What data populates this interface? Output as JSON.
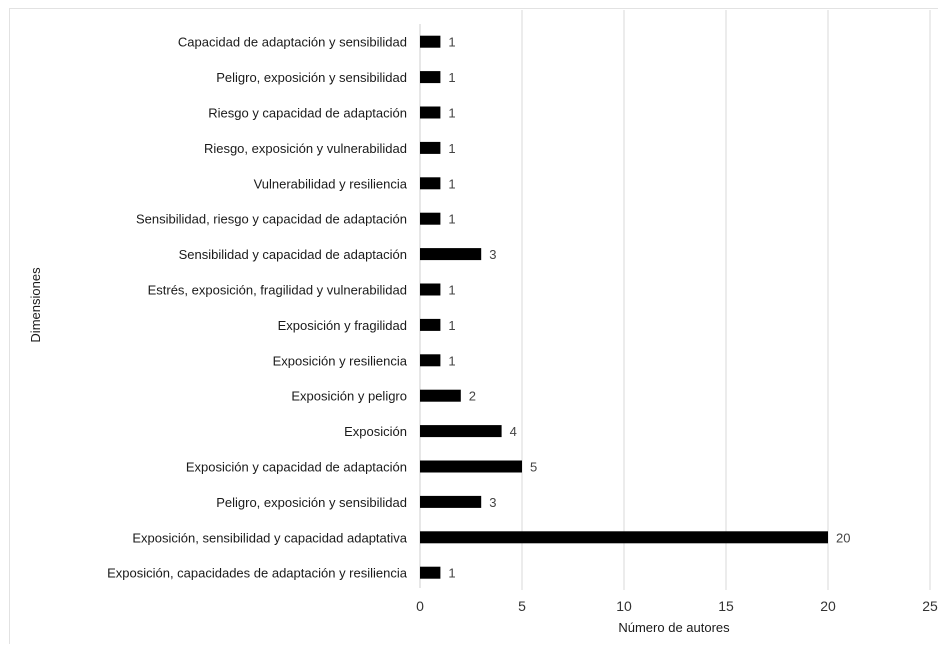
{
  "chart_data": {
    "type": "bar",
    "orientation": "horizontal",
    "title": "",
    "xlabel": "Número de autores",
    "ylabel": "Dimensiones",
    "xlim": [
      0,
      25
    ],
    "xticks": [
      0,
      5,
      10,
      15,
      20,
      25
    ],
    "grid": "vertical",
    "bar_color": "#000000",
    "categories": [
      "Capacidad de adaptación y sensibilidad",
      "Peligro, exposición y sensibilidad",
      "Riesgo y capacidad de adaptación",
      "Riesgo, exposición y vulnerabilidad",
      "Vulnerabilidad y resiliencia",
      "Sensibilidad, riesgo y capacidad de adaptación",
      "Sensibilidad y capacidad de adaptación",
      "Estrés, exposición, fragilidad y vulnerabilidad",
      "Exposición y fragilidad",
      "Exposición y resiliencia",
      "Exposición y peligro",
      "Exposición",
      "Exposición y capacidad de adaptación",
      "Peligro, exposición y sensibilidad",
      "Exposición, sensibilidad y capacidad adaptativa",
      "Exposición, capacidades de adaptación y resiliencia"
    ],
    "values": [
      1,
      1,
      1,
      1,
      1,
      1,
      3,
      1,
      1,
      1,
      2,
      4,
      5,
      3,
      20,
      1
    ]
  }
}
